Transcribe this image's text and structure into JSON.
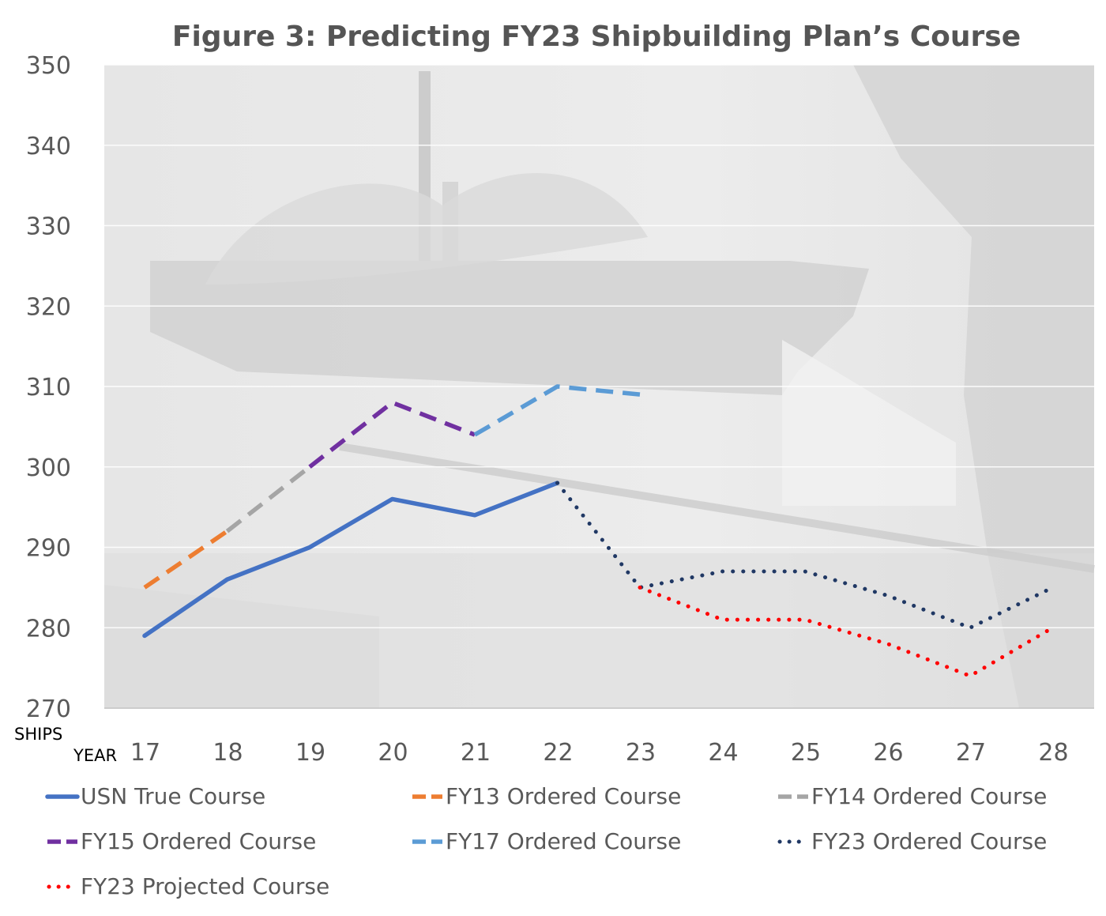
{
  "chart_data": {
    "type": "line",
    "title": "Figure 3: Predicting FY23 Shipbuilding Plan’s Course",
    "xlabel": "YEAR",
    "ylabel": "SHIPS",
    "categories": [
      "17",
      "18",
      "19",
      "20",
      "21",
      "22",
      "23",
      "24",
      "25",
      "26",
      "27",
      "28"
    ],
    "ylim": [
      270,
      350
    ],
    "yticks": [
      270,
      280,
      290,
      300,
      310,
      320,
      330,
      340,
      350
    ],
    "grid": true,
    "legend_position": "bottom",
    "background": "faded naval ship photograph",
    "series": [
      {
        "name": "USN True Course",
        "style": "solid",
        "color": "#4472C4",
        "values": [
          279,
          286,
          290,
          296,
          294,
          298,
          null,
          null,
          null,
          null,
          null,
          null
        ]
      },
      {
        "name": "FY13 Ordered Course",
        "style": "dashed",
        "color": "#ED7D31",
        "values": [
          285,
          292,
          null,
          null,
          null,
          null,
          null,
          null,
          null,
          null,
          null,
          null
        ]
      },
      {
        "name": "FY14 Ordered Course",
        "style": "dashed",
        "color": "#A5A5A5",
        "values": [
          null,
          292,
          300,
          null,
          null,
          null,
          null,
          null,
          null,
          null,
          null,
          null
        ]
      },
      {
        "name": "FY15 Ordered Course",
        "style": "dashed",
        "color": "#7030A0",
        "values": [
          null,
          null,
          300,
          308,
          304,
          null,
          null,
          null,
          null,
          null,
          null,
          null
        ]
      },
      {
        "name": "FY17 Ordered Course",
        "style": "dashed",
        "color": "#5B9BD5",
        "values": [
          null,
          null,
          null,
          null,
          304,
          310,
          309,
          null,
          null,
          null,
          null,
          null
        ]
      },
      {
        "name": "FY23 Ordered Course",
        "style": "dotted",
        "color": "#203864",
        "values": [
          null,
          null,
          null,
          null,
          null,
          298,
          285,
          287,
          287,
          284,
          280,
          285
        ]
      },
      {
        "name": "FY23 Projected Course",
        "style": "dotted",
        "color": "#FF0000",
        "values": [
          null,
          null,
          null,
          null,
          null,
          null,
          285,
          281,
          281,
          278,
          274,
          280
        ]
      }
    ]
  }
}
